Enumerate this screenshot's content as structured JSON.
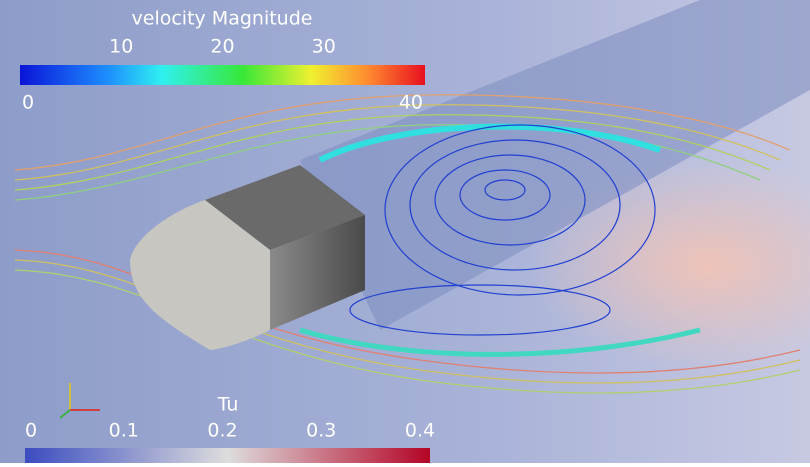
{
  "velocity_legend": {
    "title": "velocity Magnitude",
    "ticks": [
      0,
      10,
      20,
      30,
      40
    ]
  },
  "tu_legend": {
    "title": "Tu",
    "ticks": [
      0,
      0.1,
      0.2,
      0.3,
      0.4
    ]
  }
}
